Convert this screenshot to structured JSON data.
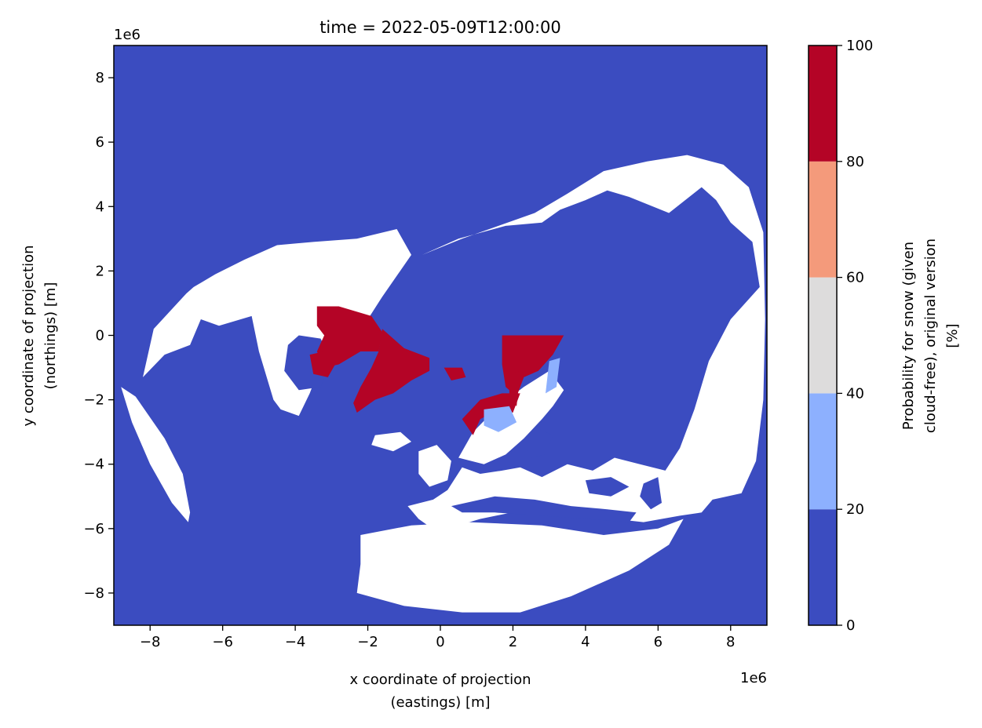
{
  "chart_data": {
    "type": "heatmap",
    "title": "time = 2022-05-09T12:00:00",
    "xlabel_line1": "x coordinate of projection",
    "xlabel_line2": "(eastings) [m]",
    "ylabel_line1": "y coordinate of projection",
    "ylabel_line2": "(northings) [m]",
    "x_offset_text": "1e6",
    "y_offset_text": "1e6",
    "xlim": [
      -9,
      9
    ],
    "ylim": [
      -9,
      9
    ],
    "xticks": [
      -8,
      -6,
      -4,
      -2,
      0,
      2,
      4,
      6,
      8
    ],
    "yticks": [
      -8,
      -6,
      -4,
      -2,
      0,
      2,
      4,
      6,
      8
    ],
    "xtick_labels": [
      "−8",
      "−6",
      "−4",
      "−2",
      "0",
      "2",
      "4",
      "6",
      "8"
    ],
    "ytick_labels": [
      "−8",
      "−6",
      "−4",
      "−2",
      "0",
      "2",
      "4",
      "6",
      "8"
    ],
    "background_color": "#3b4cc0",
    "land_color": "#ffffff",
    "colorbar": {
      "label_line1": "Probability for snow (given",
      "label_line2": "cloud-free), original version",
      "label_line3": "[%]",
      "ticks": [
        0,
        20,
        40,
        60,
        80,
        100
      ],
      "tick_labels": [
        "0",
        "20",
        "40",
        "60",
        "80",
        "100"
      ],
      "bins": [
        {
          "range": [
            0,
            20
          ],
          "color": "#3b4cc0"
        },
        {
          "range": [
            20,
            40
          ],
          "color": "#8db0fe"
        },
        {
          "range": [
            40,
            60
          ],
          "color": "#dddcdc"
        },
        {
          "range": [
            60,
            80
          ],
          "color": "#f49a7b"
        },
        {
          "range": [
            80,
            100
          ],
          "color": "#b40426"
        }
      ]
    },
    "regions": [
      {
        "name": "north-america",
        "fill": "land",
        "polygon": [
          [
            -6.2,
            1.9
          ],
          [
            -5.4,
            2.35
          ],
          [
            -4.5,
            2.8
          ],
          [
            -3.5,
            2.9
          ],
          [
            -2.3,
            3.0
          ],
          [
            -1.2,
            3.3
          ],
          [
            -0.8,
            2.5
          ],
          [
            -1.6,
            1.2
          ],
          [
            -2.0,
            0.5
          ],
          [
            -2.8,
            0.2
          ],
          [
            -3.3,
            -0.9
          ],
          [
            -3.6,
            -1.8
          ],
          [
            -3.9,
            -2.5
          ],
          [
            -4.4,
            -2.3
          ],
          [
            -4.6,
            -2.0
          ],
          [
            -5.0,
            -0.5
          ],
          [
            -5.2,
            0.6
          ],
          [
            -6.1,
            0.3
          ],
          [
            -6.6,
            0.5
          ],
          [
            -6.9,
            -0.3
          ],
          [
            -7.6,
            -0.6
          ],
          [
            -8.2,
            -1.3
          ],
          [
            -7.9,
            0.2
          ],
          [
            -7.0,
            1.3
          ],
          [
            -6.8,
            1.5
          ]
        ]
      },
      {
        "name": "alaska-peninsula",
        "fill": "land",
        "polygon": [
          [
            -8.8,
            -1.6
          ],
          [
            -8.4,
            -1.9
          ],
          [
            -7.6,
            -3.2
          ],
          [
            -7.1,
            -4.3
          ],
          [
            -6.9,
            -5.5
          ],
          [
            -6.95,
            -5.8
          ],
          [
            -7.4,
            -5.2
          ],
          [
            -8.0,
            -4.0
          ],
          [
            -8.5,
            -2.7
          ]
        ]
      },
      {
        "name": "eurasia",
        "fill": "land",
        "polygon": [
          [
            -0.5,
            2.5
          ],
          [
            0.5,
            3.0
          ],
          [
            1.8,
            3.4
          ],
          [
            2.8,
            3.5
          ],
          [
            3.3,
            3.9
          ],
          [
            4.0,
            4.2
          ],
          [
            4.6,
            4.5
          ],
          [
            5.2,
            4.3
          ],
          [
            6.3,
            3.8
          ],
          [
            7.2,
            4.6
          ],
          [
            7.6,
            4.2
          ],
          [
            8.0,
            3.5
          ],
          [
            8.6,
            2.9
          ],
          [
            8.8,
            1.5
          ],
          [
            8.0,
            0.5
          ],
          [
            7.4,
            -0.8
          ],
          [
            7.0,
            -2.3
          ],
          [
            6.6,
            -3.5
          ],
          [
            6.2,
            -4.2
          ],
          [
            5.5,
            -4.0
          ],
          [
            4.8,
            -3.8
          ],
          [
            4.2,
            -4.2
          ],
          [
            3.5,
            -4.0
          ],
          [
            2.8,
            -4.4
          ],
          [
            2.2,
            -4.1
          ],
          [
            1.7,
            -4.2
          ],
          [
            1.1,
            -4.3
          ],
          [
            0.6,
            -4.1
          ],
          [
            0.2,
            -4.8
          ],
          [
            -0.2,
            -5.1
          ],
          [
            -0.9,
            -5.3
          ],
          [
            -0.6,
            -5.7
          ],
          [
            -0.1,
            -6.1
          ],
          [
            1.1,
            -5.7
          ],
          [
            2.4,
            -5.4
          ],
          [
            3.6,
            -5.6
          ],
          [
            4.8,
            -5.7
          ],
          [
            5.6,
            -5.8
          ],
          [
            6.6,
            -5.6
          ],
          [
            7.2,
            -5.5
          ],
          [
            7.5,
            -5.1
          ],
          [
            8.3,
            -4.9
          ],
          [
            8.7,
            -3.9
          ],
          [
            8.9,
            -2.0
          ],
          [
            8.95,
            0.5
          ],
          [
            8.9,
            3.2
          ],
          [
            8.5,
            4.6
          ],
          [
            7.8,
            5.3
          ],
          [
            6.8,
            5.6
          ],
          [
            5.7,
            5.4
          ],
          [
            4.5,
            5.1
          ],
          [
            3.5,
            4.4
          ],
          [
            2.6,
            3.8
          ],
          [
            1.6,
            3.4
          ],
          [
            0.6,
            3.0
          ]
        ]
      },
      {
        "name": "africa",
        "fill": "land",
        "polygon": [
          [
            -2.2,
            -6.2
          ],
          [
            -0.8,
            -5.9
          ],
          [
            0.8,
            -5.8
          ],
          [
            2.8,
            -5.9
          ],
          [
            4.5,
            -6.2
          ],
          [
            6.0,
            -6.0
          ],
          [
            6.7,
            -5.7
          ],
          [
            6.3,
            -6.5
          ],
          [
            5.2,
            -7.3
          ],
          [
            3.6,
            -8.1
          ],
          [
            2.2,
            -8.6
          ],
          [
            0.6,
            -8.6
          ],
          [
            -1.0,
            -8.4
          ],
          [
            -2.3,
            -8.0
          ],
          [
            -2.2,
            -7.1
          ]
        ]
      },
      {
        "name": "scandinavia",
        "fill": "land",
        "polygon": [
          [
            0.5,
            -3.8
          ],
          [
            0.9,
            -3.0
          ],
          [
            1.6,
            -2.2
          ],
          [
            2.3,
            -1.6
          ],
          [
            3.0,
            -1.1
          ],
          [
            3.4,
            -1.7
          ],
          [
            3.1,
            -2.2
          ],
          [
            2.8,
            -2.6
          ],
          [
            2.3,
            -3.2
          ],
          [
            1.8,
            -3.7
          ],
          [
            1.2,
            -4.0
          ]
        ]
      },
      {
        "name": "british-isles",
        "fill": "land",
        "polygon": [
          [
            -0.6,
            -3.6
          ],
          [
            -0.1,
            -3.4
          ],
          [
            0.3,
            -3.9
          ],
          [
            0.2,
            -4.5
          ],
          [
            -0.3,
            -4.7
          ],
          [
            -0.6,
            -4.3
          ]
        ]
      },
      {
        "name": "iceland",
        "fill": "land",
        "polygon": [
          [
            -1.8,
            -3.1
          ],
          [
            -1.1,
            -3.0
          ],
          [
            -0.8,
            -3.3
          ],
          [
            -1.3,
            -3.6
          ],
          [
            -1.9,
            -3.4
          ]
        ]
      },
      {
        "name": "hudson-bay",
        "fill": "ocean",
        "polygon": [
          [
            -3.9,
            0.0
          ],
          [
            -3.3,
            -0.1
          ],
          [
            -3.0,
            -0.8
          ],
          [
            -3.3,
            -1.6
          ],
          [
            -3.9,
            -1.7
          ],
          [
            -4.3,
            -1.1
          ],
          [
            -4.2,
            -0.3
          ]
        ]
      },
      {
        "name": "baltic-sea",
        "fill": "ocean",
        "polygon": [
          [
            2.3,
            -3.4
          ],
          [
            2.7,
            -2.9
          ],
          [
            3.1,
            -3.1
          ],
          [
            2.9,
            -3.7
          ],
          [
            2.5,
            -3.8
          ]
        ]
      },
      {
        "name": "mediterranean-sea",
        "fill": "ocean",
        "polygon": [
          [
            0.3,
            -5.3
          ],
          [
            1.5,
            -5.0
          ],
          [
            2.6,
            -5.1
          ],
          [
            3.6,
            -5.3
          ],
          [
            4.6,
            -5.4
          ],
          [
            5.4,
            -5.5
          ],
          [
            5.2,
            -5.8
          ],
          [
            4.0,
            -5.7
          ],
          [
            2.8,
            -5.6
          ],
          [
            1.5,
            -5.5
          ],
          [
            0.6,
            -5.5
          ]
        ]
      },
      {
        "name": "black-sea",
        "fill": "ocean",
        "polygon": [
          [
            4.0,
            -4.5
          ],
          [
            4.7,
            -4.4
          ],
          [
            5.2,
            -4.7
          ],
          [
            4.7,
            -5.0
          ],
          [
            4.1,
            -4.9
          ]
        ]
      },
      {
        "name": "caspian-sea",
        "fill": "ocean",
        "polygon": [
          [
            5.6,
            -4.6
          ],
          [
            6.0,
            -4.4
          ],
          [
            6.1,
            -5.2
          ],
          [
            5.8,
            -5.4
          ],
          [
            5.5,
            -5.0
          ]
        ]
      },
      {
        "name": "greenland",
        "fill": "snow",
        "polygon": [
          [
            -1.6,
            0.2
          ],
          [
            -1.0,
            -0.4
          ],
          [
            -0.3,
            -0.7
          ],
          [
            -0.3,
            -1.1
          ],
          [
            -0.8,
            -1.4
          ],
          [
            -1.3,
            -1.8
          ],
          [
            -1.8,
            -2.0
          ],
          [
            -2.3,
            -2.4
          ],
          [
            -2.4,
            -2.1
          ],
          [
            -2.2,
            -1.6
          ],
          [
            -1.9,
            -1.0
          ],
          [
            -1.7,
            -0.5
          ]
        ]
      },
      {
        "name": "canadian-arctic-islands",
        "fill": "snow",
        "polygon": [
          [
            -3.4,
            0.9
          ],
          [
            -2.8,
            0.9
          ],
          [
            -1.9,
            0.6
          ],
          [
            -1.6,
            0.1
          ],
          [
            -1.7,
            -0.5
          ],
          [
            -2.2,
            -0.5
          ],
          [
            -2.8,
            -0.9
          ],
          [
            -3.2,
            -1.0
          ],
          [
            -3.4,
            -0.5
          ],
          [
            -3.2,
            0.0
          ],
          [
            -3.4,
            0.3
          ]
        ]
      },
      {
        "name": "baffin-island",
        "fill": "snow",
        "polygon": [
          [
            -3.6,
            -0.6
          ],
          [
            -3.2,
            -0.5
          ],
          [
            -2.9,
            -0.9
          ],
          [
            -3.1,
            -1.3
          ],
          [
            -3.5,
            -1.2
          ]
        ]
      },
      {
        "name": "svalbard",
        "fill": "snow",
        "polygon": [
          [
            0.1,
            -1.0
          ],
          [
            0.6,
            -1.0
          ],
          [
            0.7,
            -1.3
          ],
          [
            0.3,
            -1.4
          ]
        ]
      },
      {
        "name": "russian-arctic",
        "fill": "snow",
        "polygon": [
          [
            1.7,
            0.0
          ],
          [
            3.4,
            0.0
          ],
          [
            3.1,
            -0.6
          ],
          [
            2.7,
            -1.1
          ],
          [
            2.3,
            -1.3
          ],
          [
            2.1,
            -1.9
          ],
          [
            1.8,
            -1.6
          ],
          [
            1.7,
            -0.9
          ]
        ]
      },
      {
        "name": "northern-scandinavia",
        "fill": "snow",
        "polygon": [
          [
            0.6,
            -2.6
          ],
          [
            1.1,
            -2.0
          ],
          [
            1.7,
            -1.8
          ],
          [
            2.2,
            -1.8
          ],
          [
            2.0,
            -2.4
          ],
          [
            1.6,
            -2.3
          ],
          [
            1.1,
            -2.6
          ],
          [
            0.9,
            -3.1
          ]
        ]
      },
      {
        "name": "novaya-zemlya",
        "fill": "snow",
        "polygon": [
          [
            1.9,
            -1.2
          ],
          [
            2.2,
            -1.1
          ],
          [
            2.1,
            -2.2
          ],
          [
            1.9,
            -2.0
          ]
        ]
      },
      {
        "name": "kola-patches",
        "fill": "low",
        "polygon": [
          [
            1.2,
            -2.3
          ],
          [
            1.9,
            -2.2
          ],
          [
            2.1,
            -2.7
          ],
          [
            1.6,
            -3.0
          ],
          [
            1.2,
            -2.8
          ]
        ]
      },
      {
        "name": "siberian-fringe",
        "fill": "low",
        "polygon": [
          [
            3.0,
            -0.8
          ],
          [
            3.3,
            -0.7
          ],
          [
            3.2,
            -1.6
          ],
          [
            2.9,
            -1.8
          ]
        ]
      }
    ]
  }
}
